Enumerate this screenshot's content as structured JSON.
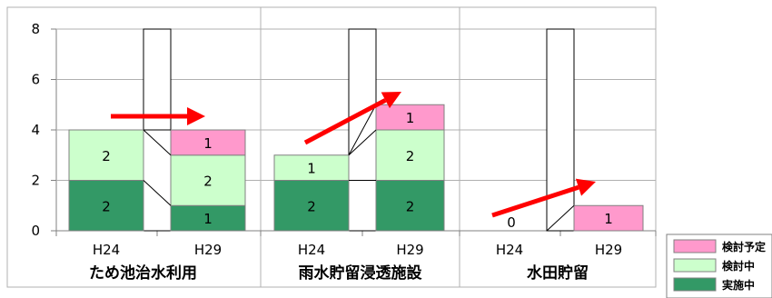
{
  "chart_data": {
    "type": "bar",
    "stacked": true,
    "ylim": [
      0,
      8
    ],
    "yticks": [
      0,
      2,
      4,
      6,
      8
    ],
    "grid": true,
    "legend_position": "bottom-right",
    "colors": {
      "検討予定": "#ff99cc",
      "検討中": "#ccffcc",
      "実施中": "#339966",
      "arrow": "#ff0000"
    },
    "legend": [
      "検討予定",
      "検討中",
      "実施中"
    ],
    "panels": [
      {
        "title": "ため池治水利用",
        "categories": [
          "H24",
          "H29"
        ],
        "series": [
          {
            "name": "実施中",
            "values": [
              2,
              1
            ]
          },
          {
            "name": "検討中",
            "values": [
              2,
              2
            ]
          },
          {
            "name": "検討予定",
            "values": [
              0,
              1
            ]
          }
        ],
        "total_labels": [
          "",
          ""
        ]
      },
      {
        "title": "雨水貯留浸透施設",
        "categories": [
          "H24",
          "H29"
        ],
        "series": [
          {
            "name": "実施中",
            "values": [
              2,
              2
            ]
          },
          {
            "name": "検討中",
            "values": [
              1,
              2
            ]
          },
          {
            "name": "検討予定",
            "values": [
              0,
              1
            ]
          }
        ],
        "total_labels": [
          "",
          ""
        ]
      },
      {
        "title": "水田貯留",
        "categories": [
          "H24",
          "H29"
        ],
        "series": [
          {
            "name": "実施中",
            "values": [
              0,
              0
            ]
          },
          {
            "name": "検討中",
            "values": [
              0,
              0
            ]
          },
          {
            "name": "検討予定",
            "values": [
              0,
              1
            ]
          }
        ],
        "total_labels": [
          "0",
          ""
        ]
      }
    ]
  }
}
